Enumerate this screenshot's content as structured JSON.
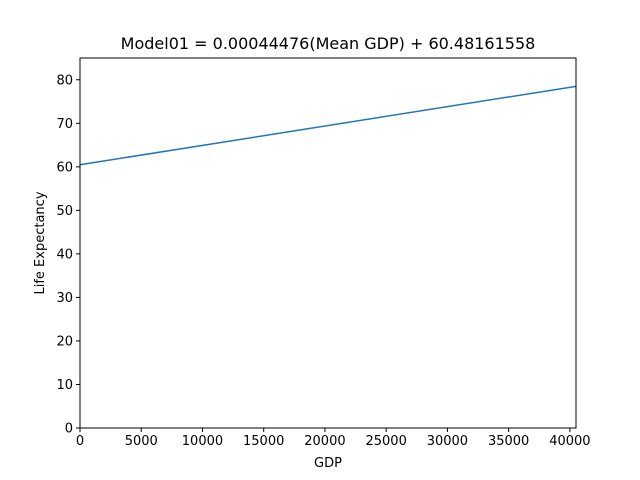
{
  "chart_data": {
    "type": "line",
    "title": "Model01 = 0.00044476(Mean GDP) + 60.48161558",
    "xlabel": "GDP",
    "ylabel": "Life Expectancy",
    "xlim": [
      0,
      40500
    ],
    "ylim": [
      0,
      85
    ],
    "xticks": [
      0,
      5000,
      10000,
      15000,
      20000,
      25000,
      30000,
      35000,
      40000
    ],
    "yticks": [
      0,
      10,
      20,
      30,
      40,
      50,
      60,
      70,
      80
    ],
    "grid": false,
    "series": [
      {
        "color": "#1f77b4",
        "x": [
          0,
          40500
        ],
        "y": [
          60.48,
          78.49
        ]
      }
    ]
  }
}
